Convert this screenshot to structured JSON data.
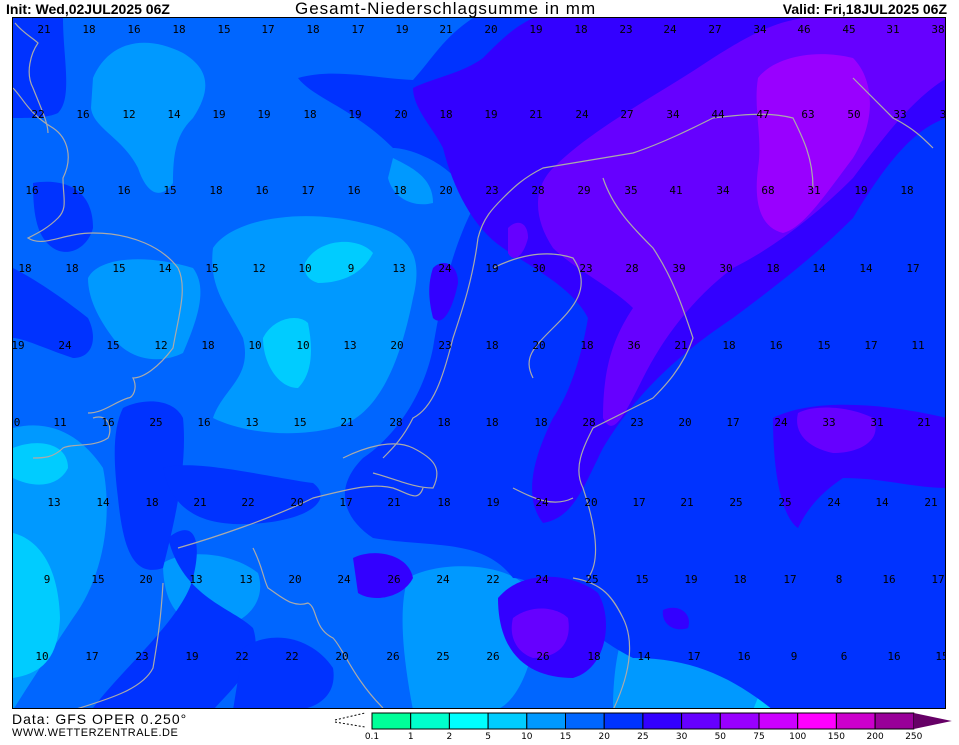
{
  "header": {
    "init": "Init: Wed,02JUL2025 06Z",
    "title": "Gesamt-Niederschlagsumme in mm",
    "valid": "Valid: Fri,18JUL2025 06Z"
  },
  "footer": {
    "data_source": "Data: GFS OPER 0.250°",
    "website": "WWW.WETTERZENTRALE.DE"
  },
  "legend": {
    "unit": "mm",
    "ticks": [
      "0.1",
      "1",
      "2",
      "5",
      "10",
      "15",
      "20",
      "25",
      "30",
      "50",
      "75",
      "100",
      "150",
      "200",
      "250"
    ],
    "colors": [
      "#00FF99",
      "#00FFCC",
      "#00FFFF",
      "#00CCFF",
      "#0099FF",
      "#0066FF",
      "#0033FF",
      "#3300FF",
      "#6600FF",
      "#9900FF",
      "#CC00FF",
      "#FF00FF",
      "#CC00CC",
      "#990099",
      "#660066"
    ]
  },
  "map": {
    "coastline_color": "#AAAAAA",
    "value_rows": [
      [
        "21",
        "18",
        "16",
        "18",
        "15",
        "17",
        "18",
        "17",
        "19",
        "21",
        "20",
        "19",
        "18",
        "23",
        "24",
        "27",
        "34",
        "46",
        "45",
        "31",
        "38"
      ],
      [
        "22",
        "16",
        "12",
        "14",
        "19",
        "19",
        "18",
        "19",
        "20",
        "18",
        "19",
        "21",
        "24",
        "27",
        "34",
        "44",
        "47",
        "63",
        "50",
        "33",
        "3"
      ],
      [
        "16",
        "19",
        "16",
        "15",
        "18",
        "16",
        "17",
        "16",
        "18",
        "20",
        "23",
        "28",
        "29",
        "35",
        "41",
        "34",
        "68",
        "31",
        "19",
        "18"
      ],
      [
        "18",
        "18",
        "15",
        "14",
        "15",
        "12",
        "10",
        "9",
        "13",
        "24",
        "19",
        "30",
        "23",
        "28",
        "39",
        "30",
        "18",
        "14",
        "14",
        "17"
      ],
      [
        "19",
        "24",
        "15",
        "12",
        "18",
        "10",
        "10",
        "13",
        "20",
        "23",
        "18",
        "20",
        "18",
        "36",
        "21",
        "18",
        "16",
        "15",
        "17",
        "11"
      ],
      [
        "0",
        "11",
        "16",
        "25",
        "16",
        "13",
        "15",
        "21",
        "28",
        "18",
        "18",
        "18",
        "28",
        "23",
        "20",
        "17",
        "24",
        "33",
        "31",
        "21"
      ],
      [
        "13",
        "14",
        "18",
        "21",
        "22",
        "20",
        "17",
        "21",
        "18",
        "19",
        "24",
        "20",
        "17",
        "21",
        "25",
        "25",
        "24",
        "14",
        "21"
      ],
      [
        "9",
        "15",
        "20",
        "13",
        "13",
        "20",
        "24",
        "26",
        "24",
        "22",
        "24",
        "25",
        "15",
        "19",
        "18",
        "17",
        "8",
        "16",
        "17"
      ],
      [
        "10",
        "17",
        "23",
        "19",
        "22",
        "22",
        "20",
        "26",
        "25",
        "26",
        "26",
        "18",
        "14",
        "17",
        "16",
        "9",
        "6",
        "16",
        "15"
      ]
    ]
  }
}
